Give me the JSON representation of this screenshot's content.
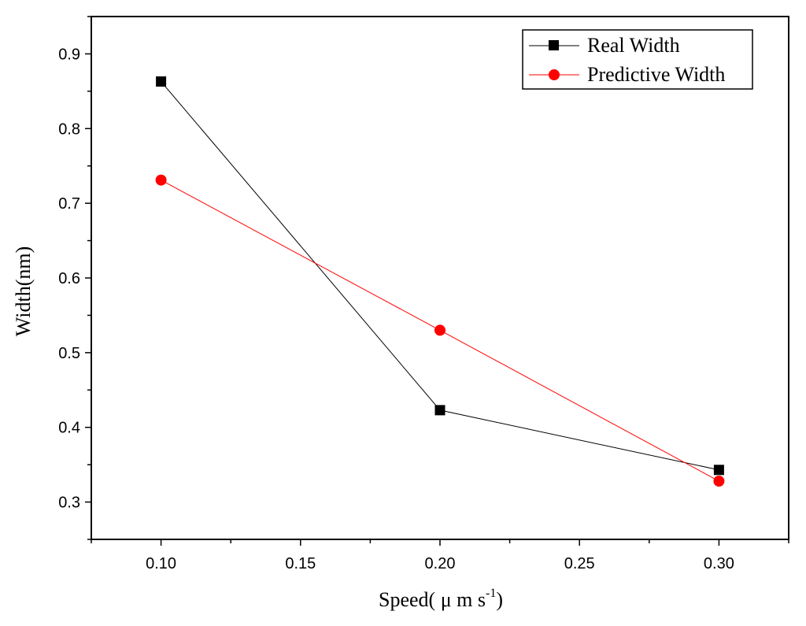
{
  "chart_data": {
    "type": "line",
    "title": "",
    "xlabel": "Speed( μ m s",
    "xlabel_superscript": "-1",
    "xlabel_suffix": ")",
    "ylabel": "Width(nm)",
    "x": [
      0.1,
      0.2,
      0.3
    ],
    "xlim": [
      0.075,
      0.325
    ],
    "ylim": [
      0.25,
      0.95
    ],
    "xticks": [
      0.1,
      0.15,
      0.2,
      0.25,
      0.3
    ],
    "xtick_labels": [
      "0.10",
      "0.15",
      "0.20",
      "0.25",
      "0.30"
    ],
    "yticks": [
      0.3,
      0.4,
      0.5,
      0.6,
      0.7,
      0.8,
      0.9
    ],
    "ytick_labels": [
      "0.3",
      "0.4",
      "0.5",
      "0.6",
      "0.7",
      "0.8",
      "0.9"
    ],
    "grid": false,
    "legend_position": "top-right",
    "series": [
      {
        "name": "Real Width",
        "values": [
          0.863,
          0.423,
          0.343
        ],
        "color": "#000000",
        "marker": "square"
      },
      {
        "name": "Predictive Width",
        "values": [
          0.731,
          0.53,
          0.328
        ],
        "color": "#ff0000",
        "marker": "circle"
      }
    ]
  }
}
